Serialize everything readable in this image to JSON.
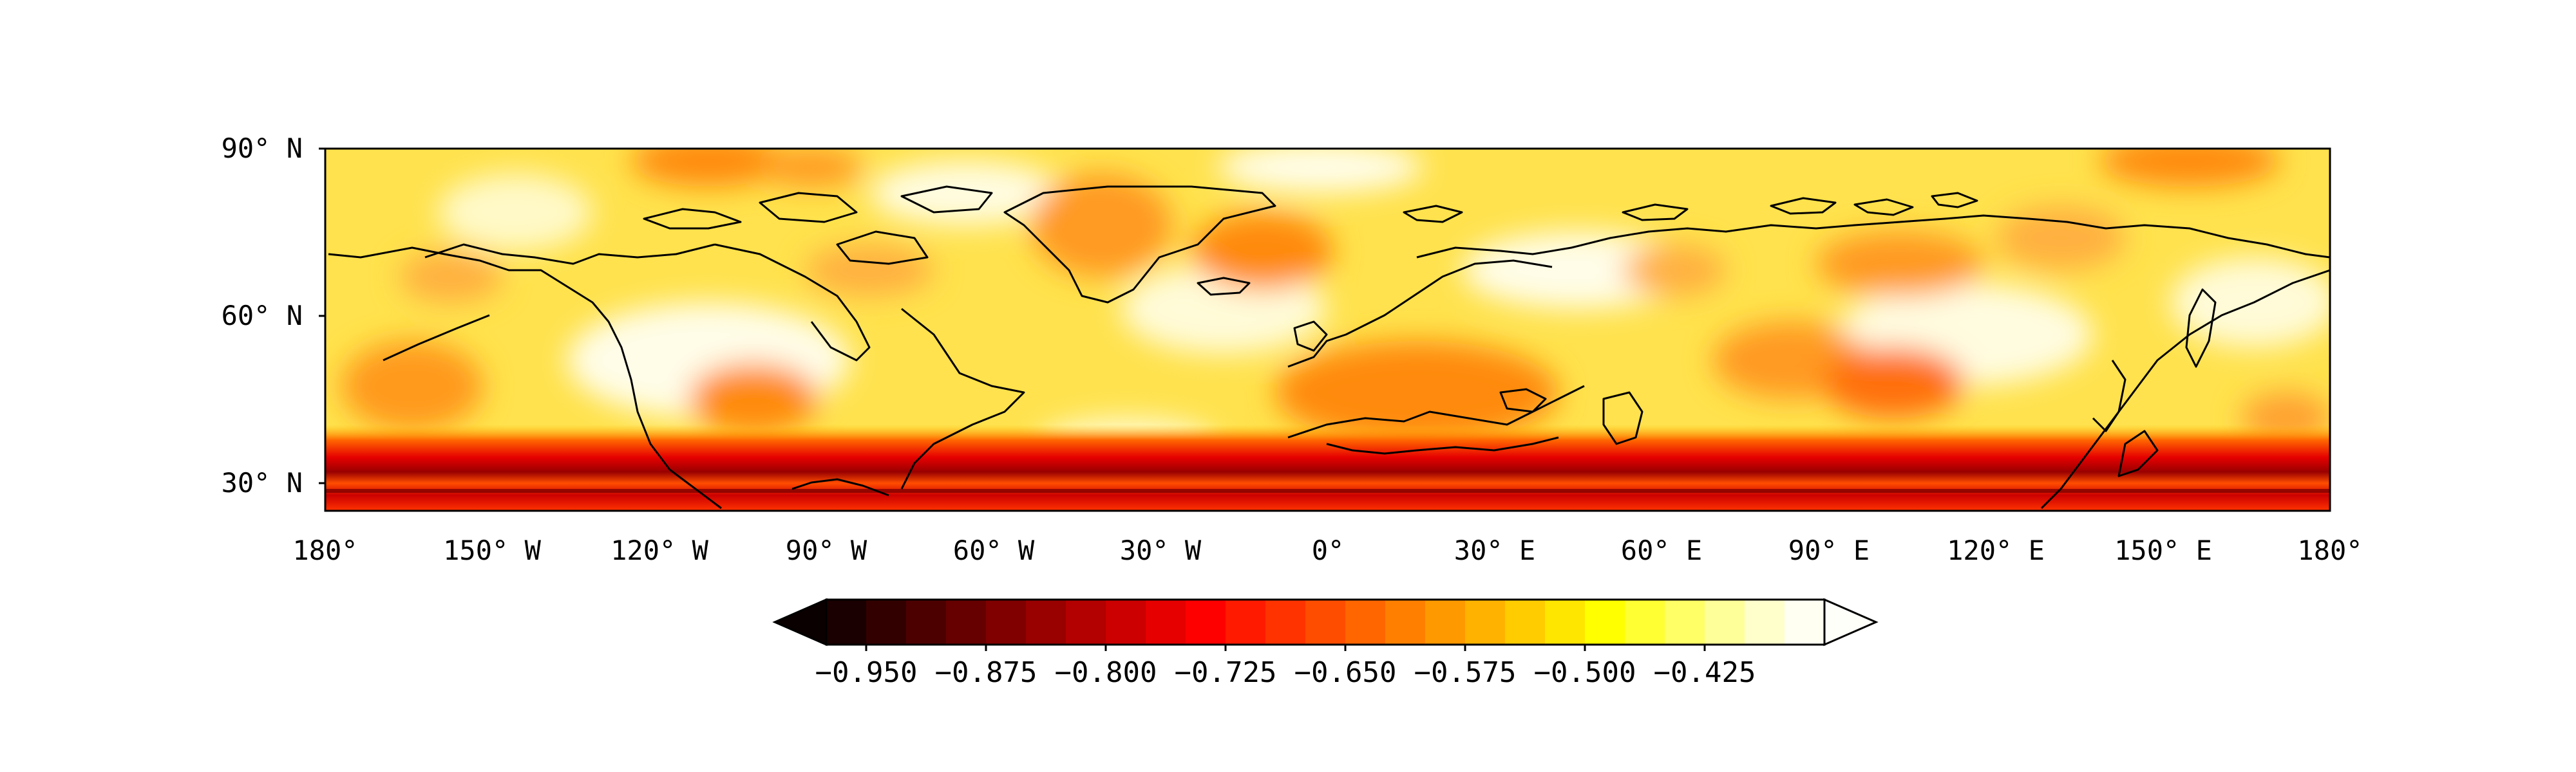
{
  "map": {
    "lat_ticks": [
      "90° N",
      "60° N",
      "30° N"
    ],
    "lon_ticks": [
      "180°",
      "150° W",
      "120° W",
      "90° W",
      "60° W",
      "30° W",
      "0°",
      "30° E",
      "60° E",
      "90° E",
      "120° E",
      "150° E",
      "180°"
    ],
    "extent": {
      "lon_min": -180,
      "lon_max": 180,
      "lat_min": 25,
      "lat_max": 90
    },
    "coastlines": true
  },
  "colorbar": {
    "extend": "both",
    "levels_min": -0.975,
    "levels_step": 0.025,
    "levels_count": 23,
    "tick_labels": [
      "−0.950",
      "−0.875",
      "−0.800",
      "−0.725",
      "−0.650",
      "−0.575",
      "−0.500",
      "−0.425"
    ],
    "colors": [
      "#1a0000",
      "#330000",
      "#4d0000",
      "#660000",
      "#800000",
      "#990000",
      "#b30000",
      "#cc0000",
      "#e60000",
      "#ff0000",
      "#ff1a00",
      "#ff3300",
      "#ff4d00",
      "#ff6600",
      "#ff8000",
      "#ff9900",
      "#ffb300",
      "#ffcc00",
      "#ffe600",
      "#ffff00",
      "#ffff33",
      "#ffff66",
      "#ffff99",
      "#ffffcc",
      "#fffff2"
    ],
    "under_color": "#0a0000",
    "over_color": "#fffffa"
  }
}
